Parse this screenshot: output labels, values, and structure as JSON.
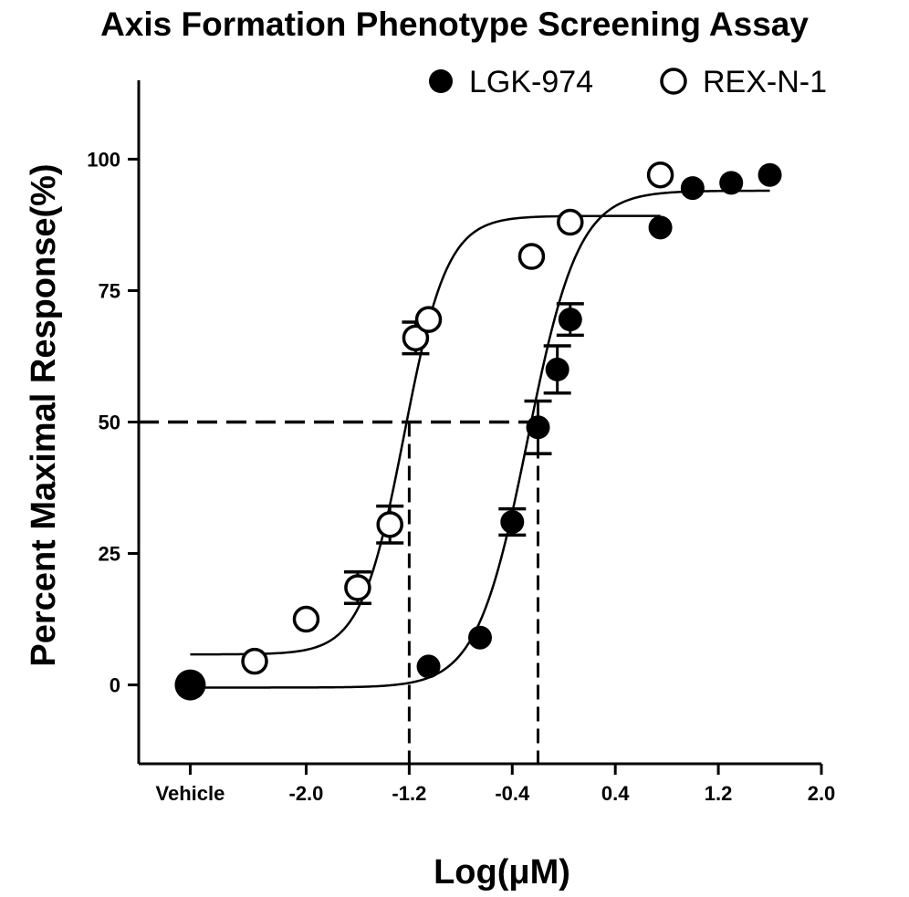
{
  "chart_data": {
    "type": "scatter",
    "title": "Axis Formation Phenotype Screening Assay",
    "xlabel": "Log(μM)",
    "ylabel": "Percent Maximal Response(%)",
    "xlim": [
      -3.3,
      2.0
    ],
    "ylim": [
      -15,
      115
    ],
    "x_ticks": [
      {
        "value": -2.0,
        "label": "-2.0"
      },
      {
        "value": -1.2,
        "label": "-1.2"
      },
      {
        "value": -0.4,
        "label": "-0.4"
      },
      {
        "value": 0.4,
        "label": "0.4"
      },
      {
        "value": 1.2,
        "label": "1.2"
      },
      {
        "value": 2.0,
        "label": "2.0"
      }
    ],
    "vehicle": {
      "x": -2.9,
      "label": "Vehicle"
    },
    "y_ticks": [
      0,
      25,
      50,
      75,
      100
    ],
    "legend_position": "top-right",
    "series": [
      {
        "name": "LGK-974",
        "marker": "filled-circle",
        "color": "#000000",
        "points": [
          {
            "x": -2.9,
            "y": 0
          },
          {
            "x": -1.05,
            "y": 3.5
          },
          {
            "x": -0.65,
            "y": 9
          },
          {
            "x": -0.4,
            "y": 31,
            "err": 2.5
          },
          {
            "x": -0.2,
            "y": 49,
            "err": 5
          },
          {
            "x": -0.05,
            "y": 60,
            "err": 4.5
          },
          {
            "x": 0.05,
            "y": 69.5,
            "err": 3
          },
          {
            "x": 0.75,
            "y": 87
          },
          {
            "x": 1.0,
            "y": 94.5
          },
          {
            "x": 1.3,
            "y": 95.5
          },
          {
            "x": 1.6,
            "y": 97
          }
        ],
        "fit": {
          "bottom": -0.5,
          "top": 94,
          "logEC50": -0.28,
          "hill": 2.2
        }
      },
      {
        "name": "REX-N-1",
        "marker": "open-circle",
        "color": "#000000",
        "points": [
          {
            "x": -2.4,
            "y": 4.5
          },
          {
            "x": -2.0,
            "y": 12.5
          },
          {
            "x": -1.6,
            "y": 18.5,
            "err": 3
          },
          {
            "x": -1.35,
            "y": 30.5,
            "err": 3.5
          },
          {
            "x": -1.15,
            "y": 66,
            "err": 3
          },
          {
            "x": -1.05,
            "y": 69.5
          },
          {
            "x": -0.25,
            "y": 81.5
          },
          {
            "x": 0.05,
            "y": 88
          },
          {
            "x": 0.75,
            "y": 97
          }
        ],
        "fit": {
          "bottom": 5.8,
          "top": 89.2,
          "logEC50": -1.24,
          "hill": 2.6
        }
      }
    ],
    "ec50_guides": [
      {
        "series": "REX-N-1",
        "x": -1.2,
        "y": 50
      },
      {
        "series": "LGK-974",
        "x": -0.2,
        "y": 50
      }
    ]
  }
}
